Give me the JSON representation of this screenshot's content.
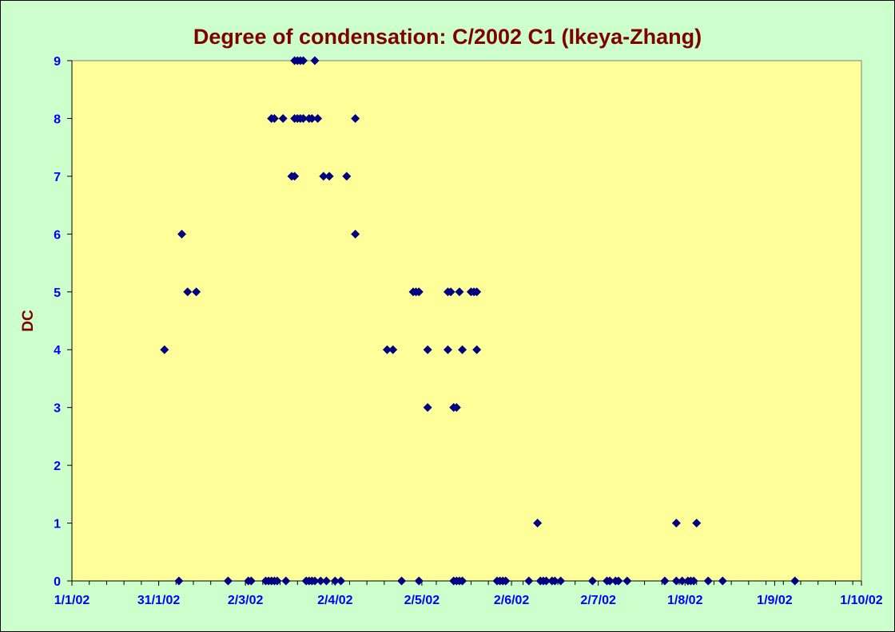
{
  "colors": {
    "background": "#ccffcc",
    "plot_area": "#ffff99",
    "marker": "#000080",
    "title": "#800000",
    "tick_labels": "#0000ff"
  },
  "chart_data": {
    "type": "scatter",
    "title": "Degree of condensation: C/2002 C1 (Ikeya-Zhang)",
    "xlabel": "",
    "ylabel": "DC",
    "x_is_date": true,
    "xlim": [
      "2002-01-01",
      "2002-10-01"
    ],
    "ylim": [
      0,
      9
    ],
    "x_ticks": [
      "1/1/02",
      "31/1/02",
      "2/3/02",
      "2/4/02",
      "2/5/02",
      "2/6/02",
      "2/7/02",
      "1/8/02",
      "1/9/02",
      "1/10/02"
    ],
    "y_ticks": [
      "0",
      "1",
      "2",
      "3",
      "4",
      "5",
      "6",
      "7",
      "8",
      "9"
    ],
    "grid": false,
    "legend": "none",
    "marker": "diamond",
    "points": [
      [
        "2002-02-02",
        4
      ],
      [
        "2002-02-07",
        0
      ],
      [
        "2002-02-08",
        6
      ],
      [
        "2002-02-10",
        5
      ],
      [
        "2002-02-13",
        5
      ],
      [
        "2002-02-24",
        0
      ],
      [
        "2002-03-03",
        0
      ],
      [
        "2002-03-04",
        0
      ],
      [
        "2002-03-09",
        0
      ],
      [
        "2002-03-10",
        0
      ],
      [
        "2002-03-11",
        8
      ],
      [
        "2002-03-11",
        0
      ],
      [
        "2002-03-12",
        8
      ],
      [
        "2002-03-12",
        0
      ],
      [
        "2002-03-13",
        0
      ],
      [
        "2002-03-15",
        8
      ],
      [
        "2002-03-16",
        0
      ],
      [
        "2002-03-18",
        7
      ],
      [
        "2002-03-19",
        7
      ],
      [
        "2002-03-19",
        9
      ],
      [
        "2002-03-19",
        8
      ],
      [
        "2002-03-20",
        9
      ],
      [
        "2002-03-20",
        8
      ],
      [
        "2002-03-21",
        8
      ],
      [
        "2002-03-21",
        9
      ],
      [
        "2002-03-22",
        9
      ],
      [
        "2002-03-22",
        8
      ],
      [
        "2002-03-23",
        0
      ],
      [
        "2002-03-24",
        8
      ],
      [
        "2002-03-24",
        0
      ],
      [
        "2002-03-25",
        8
      ],
      [
        "2002-03-25",
        0
      ],
      [
        "2002-03-26",
        9
      ],
      [
        "2002-03-26",
        0
      ],
      [
        "2002-03-27",
        8
      ],
      [
        "2002-03-28",
        0
      ],
      [
        "2002-03-29",
        7
      ],
      [
        "2002-03-30",
        0
      ],
      [
        "2002-03-31",
        7
      ],
      [
        "2002-04-02",
        0
      ],
      [
        "2002-04-04",
        0
      ],
      [
        "2002-04-06",
        7
      ],
      [
        "2002-04-09",
        8
      ],
      [
        "2002-04-09",
        6
      ],
      [
        "2002-04-20",
        4
      ],
      [
        "2002-04-22",
        4
      ],
      [
        "2002-04-25",
        0
      ],
      [
        "2002-04-29",
        5
      ],
      [
        "2002-04-30",
        5
      ],
      [
        "2002-05-01",
        0
      ],
      [
        "2002-05-01",
        5
      ],
      [
        "2002-05-04",
        4
      ],
      [
        "2002-05-04",
        3
      ],
      [
        "2002-05-11",
        4
      ],
      [
        "2002-05-11",
        5
      ],
      [
        "2002-05-12",
        5
      ],
      [
        "2002-05-13",
        3
      ],
      [
        "2002-05-13",
        0
      ],
      [
        "2002-05-14",
        3
      ],
      [
        "2002-05-14",
        0
      ],
      [
        "2002-05-15",
        0
      ],
      [
        "2002-05-15",
        5
      ],
      [
        "2002-05-16",
        4
      ],
      [
        "2002-05-16",
        0
      ],
      [
        "2002-05-19",
        5
      ],
      [
        "2002-05-20",
        5
      ],
      [
        "2002-05-21",
        5
      ],
      [
        "2002-05-21",
        4
      ],
      [
        "2002-05-28",
        0
      ],
      [
        "2002-05-29",
        0
      ],
      [
        "2002-05-30",
        0
      ],
      [
        "2002-05-31",
        0
      ],
      [
        "2002-06-08",
        0
      ],
      [
        "2002-06-11",
        1
      ],
      [
        "2002-06-12",
        0
      ],
      [
        "2002-06-13",
        0
      ],
      [
        "2002-06-14",
        0
      ],
      [
        "2002-06-16",
        0
      ],
      [
        "2002-06-17",
        0
      ],
      [
        "2002-06-19",
        0
      ],
      [
        "2002-06-30",
        0
      ],
      [
        "2002-07-05",
        0
      ],
      [
        "2002-07-06",
        0
      ],
      [
        "2002-07-08",
        0
      ],
      [
        "2002-07-09",
        0
      ],
      [
        "2002-07-12",
        0
      ],
      [
        "2002-07-25",
        0
      ],
      [
        "2002-07-29",
        1
      ],
      [
        "2002-07-29",
        0
      ],
      [
        "2002-07-31",
        0
      ],
      [
        "2002-08-02",
        0
      ],
      [
        "2002-08-03",
        0
      ],
      [
        "2002-08-04",
        0
      ],
      [
        "2002-08-05",
        1
      ],
      [
        "2002-08-09",
        0
      ],
      [
        "2002-08-14",
        0
      ],
      [
        "2002-09-08",
        0
      ]
    ]
  }
}
